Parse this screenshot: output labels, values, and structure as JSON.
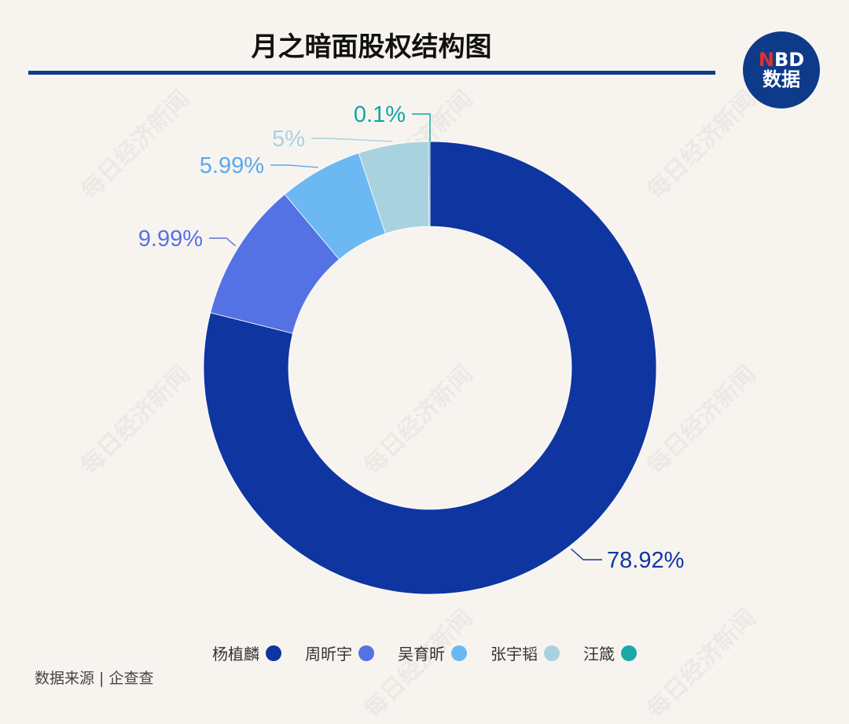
{
  "title": "月之暗面股权结构图",
  "logo": {
    "line1_red": "N",
    "line1_rest": "BD",
    "line2": "数据"
  },
  "watermark_text": "每日经济新闻",
  "source": "数据来源 | 企查查",
  "colors": {
    "accent": "#0c3c8c",
    "background": "#f7f4f0"
  },
  "chart_data": {
    "type": "pie",
    "donut": true,
    "title": "月之暗面股权结构图",
    "legend_position": "bottom",
    "slices": [
      {
        "name": "杨植麟",
        "value": 78.92,
        "label": "78.92%",
        "color": "#0f35a0",
        "label_color": "#0f35a0"
      },
      {
        "name": "周昕宇",
        "value": 9.99,
        "label": "9.99%",
        "color": "#5572e4",
        "label_color": "#5572e4"
      },
      {
        "name": "吴育昕",
        "value": 5.99,
        "label": "5.99%",
        "color": "#6cb8f2",
        "label_color": "#5aa8ee"
      },
      {
        "name": "张宇韬",
        "value": 5,
        "label": "5%",
        "color": "#a9d2df",
        "label_color": "#a9d2df"
      },
      {
        "name": "汪箴",
        "value": 0.1,
        "label": "0.1%",
        "color": "#1aa9a8",
        "label_color": "#12a5a4"
      }
    ]
  }
}
